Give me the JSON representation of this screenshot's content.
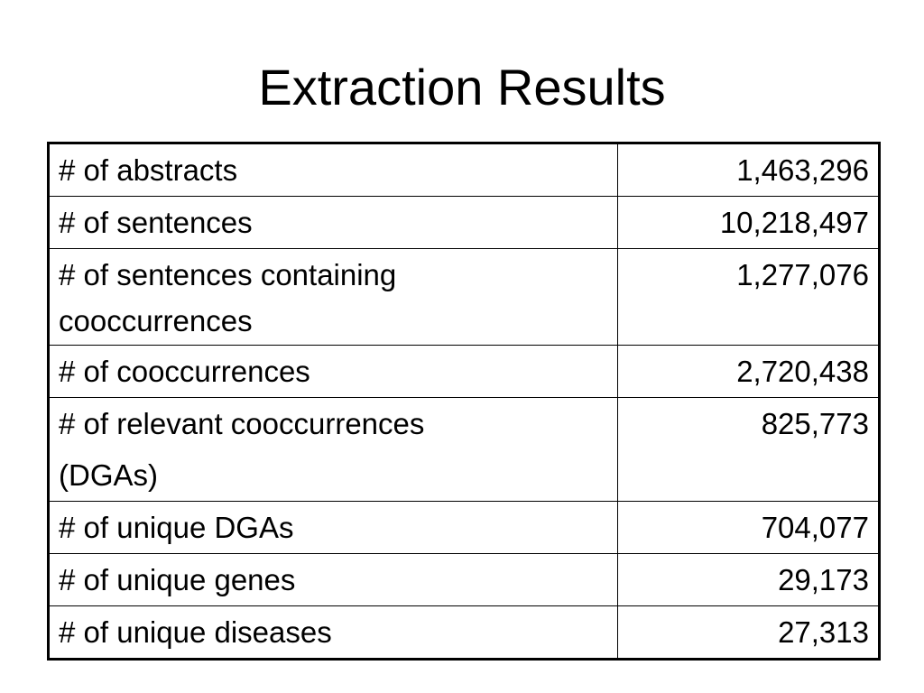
{
  "slide": {
    "title": "Extraction Results"
  },
  "table": {
    "rows": [
      {
        "label": "# of abstracts",
        "value": "1,463,296"
      },
      {
        "label": "# of sentences",
        "value": "10,218,497"
      },
      {
        "label_line1": "# of sentences containing",
        "label_line2": "cooccurrences",
        "value": "1,277,076"
      },
      {
        "label": "# of cooccurrences",
        "value": "2,720,438"
      },
      {
        "label_line1": "# of relevant cooccurrences",
        "label_line2": "(DGAs)",
        "value": "825,773"
      },
      {
        "label": "# of unique DGAs",
        "value": "704,077"
      },
      {
        "label": "# of unique genes",
        "value": "29,173"
      },
      {
        "label": "# of unique diseases",
        "value": "27,313"
      }
    ]
  }
}
